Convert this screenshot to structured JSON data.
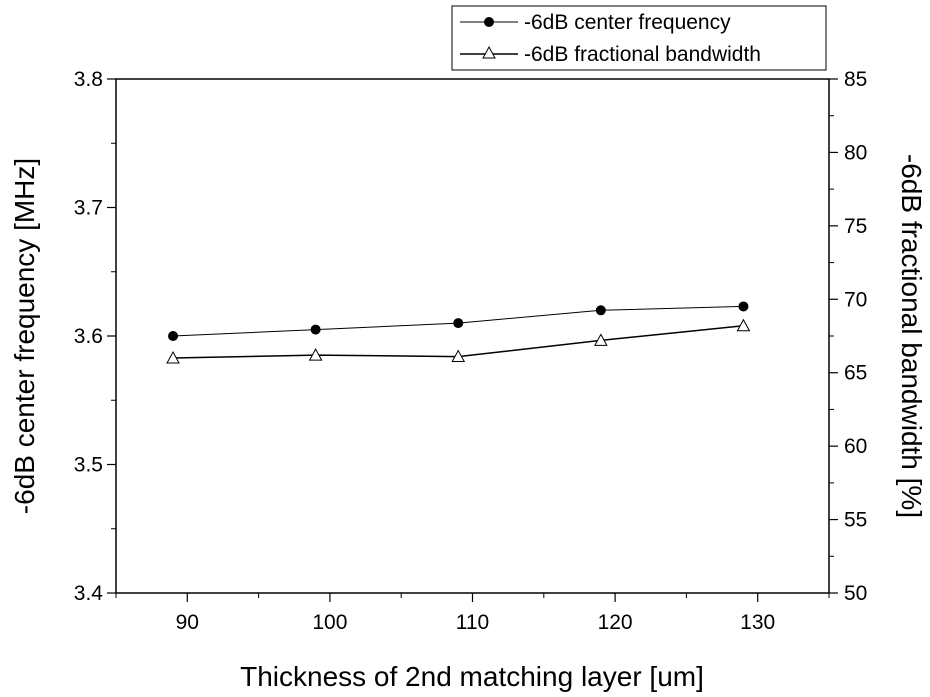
{
  "chart_data": {
    "type": "line",
    "xlabel": "Thickness of 2nd matching layer [um]",
    "ylabel_left": "-6dB center frequency [MHz]",
    "ylabel_right": "-6dB fractional bandwidth [%]",
    "xlim": [
      85,
      135
    ],
    "ylim_left": [
      3.4,
      3.8
    ],
    "ylim_right": [
      50,
      85
    ],
    "x_ticks": [
      90,
      100,
      110,
      120,
      130
    ],
    "y_left_ticks": [
      3.4,
      3.5,
      3.6,
      3.7,
      3.8
    ],
    "y_right_ticks": [
      50,
      55,
      60,
      65,
      70,
      75,
      80,
      85
    ],
    "x_tick_labels": [
      "90",
      "100",
      "110",
      "120",
      "130"
    ],
    "y_left_tick_labels": [
      "3.4",
      "3.5",
      "3.6",
      "3.7",
      "3.8"
    ],
    "y_right_tick_labels": [
      "50",
      "55",
      "60",
      "65",
      "70",
      "75",
      "80",
      "85"
    ],
    "legend_position": "top-right, above plot",
    "grid": false,
    "series": [
      {
        "name": "-6dB center frequency",
        "axis": "left",
        "marker": "filled-circle",
        "x": [
          89,
          99,
          109,
          119,
          129
        ],
        "values": [
          3.6,
          3.605,
          3.61,
          3.62,
          3.623
        ]
      },
      {
        "name": "-6dB fractional bandwidth",
        "axis": "right",
        "marker": "open-triangle",
        "x": [
          89,
          99,
          109,
          119,
          129
        ],
        "values": [
          66.0,
          66.2,
          66.1,
          67.2,
          68.2
        ]
      }
    ]
  }
}
